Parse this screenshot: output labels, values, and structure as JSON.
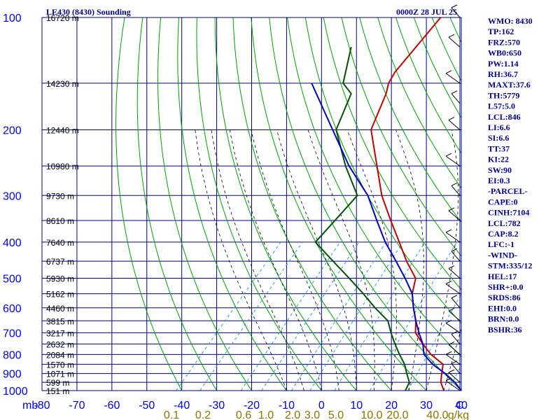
{
  "header": {
    "title": "LE430 (8430) Sounding",
    "time": "0000Z 28 JUL 25"
  },
  "colors": {
    "temperature": "#c00000",
    "dewpoint": "#005000",
    "parcel": "#0000c0",
    "grid": "#00008b",
    "dry_adiabat": "#00a000",
    "moist_adiabat": "#000000",
    "mixing_ratio": "#3399cc",
    "pressure_label": "#0000ff",
    "mixing_label": "#8b7500"
  },
  "indices": [
    "WMO: 8430",
    "TP:162",
    "FRZ:570",
    "WB0:650",
    "PW:1.14",
    "RH:36.7",
    "MAXT:37.6",
    "TH:5779",
    "L57:5.0",
    "LCL:846",
    "LI:6.6",
    "SI:6.6",
    "TT:37",
    "KI:22",
    "SW:90",
    "EI:0.3",
    "-PARCEL-",
    "CAPE:0",
    "CINH:7104",
    "LCL:782",
    "CAP:8.2",
    "LFC:-1",
    "-WIND-",
    "STM:335/12",
    "HEL:17",
    "SHR+:0.0",
    "SRDS:86",
    "EHI:0.0",
    "BRN:0.0",
    "BSHR:36"
  ],
  "chart_data": {
    "type": "line",
    "chart_kind": "skew-T log-P sounding",
    "xlim": [
      -80,
      40
    ],
    "ylim": [
      1000,
      100
    ],
    "y_scale": "log",
    "x_unit_label": "C",
    "y_unit_label": "mb",
    "x_ticks": [
      -80,
      -70,
      -60,
      -50,
      -40,
      -30,
      -20,
      -10,
      0,
      10,
      20,
      30,
      40
    ],
    "y_ticks": [
      1000,
      900,
      800,
      700,
      600,
      500,
      400,
      300,
      200,
      100
    ],
    "height_labels": [
      {
        "p": 100,
        "label": "16720 m"
      },
      {
        "p": 150,
        "label": "14230 m"
      },
      {
        "p": 200,
        "label": "12440 m"
      },
      {
        "p": 250,
        "label": "10980 m"
      },
      {
        "p": 300,
        "label": "9730 m"
      },
      {
        "p": 350,
        "label": "8610 m"
      },
      {
        "p": 400,
        "label": "7640 m"
      },
      {
        "p": 450,
        "label": "6737 m"
      },
      {
        "p": 500,
        "label": "5930 m"
      },
      {
        "p": 550,
        "label": "5162 m"
      },
      {
        "p": 600,
        "label": "4460 m"
      },
      {
        "p": 650,
        "label": "3815 m"
      },
      {
        "p": 700,
        "label": "3217 m"
      },
      {
        "p": 750,
        "label": "2632 m"
      },
      {
        "p": 800,
        "label": "2084 m"
      },
      {
        "p": 850,
        "label": "1570 m"
      },
      {
        "p": 900,
        "label": "1071 m"
      },
      {
        "p": 950,
        "label": "599 m"
      },
      {
        "p": 1000,
        "label": "151 m"
      }
    ],
    "mixing_ratio_labels": [
      "0.1",
      "0.2",
      "0.6",
      "1.0",
      "2.0",
      "3.0",
      "5.0",
      "10.0",
      "20.0",
      "40.0",
      "g/kg"
    ],
    "series": [
      {
        "key": "temperature",
        "points": [
          {
            "p": 100,
            "t": -62
          },
          {
            "p": 140,
            "t": -61
          },
          {
            "p": 150,
            "t": -60
          },
          {
            "p": 160,
            "t": -58
          },
          {
            "p": 200,
            "t": -53
          },
          {
            "p": 250,
            "t": -42
          },
          {
            "p": 300,
            "t": -33
          },
          {
            "p": 350,
            "t": -24
          },
          {
            "p": 400,
            "t": -16
          },
          {
            "p": 450,
            "t": -9
          },
          {
            "p": 500,
            "t": -2
          },
          {
            "p": 550,
            "t": 1
          },
          {
            "p": 600,
            "t": 5
          },
          {
            "p": 650,
            "t": 9
          },
          {
            "p": 700,
            "t": 12
          },
          {
            "p": 750,
            "t": 17
          },
          {
            "p": 800,
            "t": 22
          },
          {
            "p": 850,
            "t": 28
          },
          {
            "p": 900,
            "t": 30
          },
          {
            "p": 950,
            "t": 32
          },
          {
            "p": 1000,
            "t": 35
          }
        ]
      },
      {
        "key": "dewpoint",
        "points": [
          {
            "p": 120,
            "t": -80
          },
          {
            "p": 150,
            "t": -73
          },
          {
            "p": 160,
            "t": -68
          },
          {
            "p": 200,
            "t": -63
          },
          {
            "p": 250,
            "t": -51
          },
          {
            "p": 300,
            "t": -40
          },
          {
            "p": 400,
            "t": -40
          },
          {
            "p": 450,
            "t": -30
          },
          {
            "p": 500,
            "t": -21
          },
          {
            "p": 550,
            "t": -13
          },
          {
            "p": 600,
            "t": -6
          },
          {
            "p": 650,
            "t": 1
          },
          {
            "p": 700,
            "t": 5
          },
          {
            "p": 750,
            "t": 9
          },
          {
            "p": 800,
            "t": 13
          },
          {
            "p": 850,
            "t": 17
          },
          {
            "p": 900,
            "t": 20
          },
          {
            "p": 950,
            "t": 23
          },
          {
            "p": 1000,
            "t": 24
          }
        ]
      },
      {
        "key": "parcel",
        "points": [
          {
            "p": 150,
            "t": -82
          },
          {
            "p": 200,
            "t": -64
          },
          {
            "p": 250,
            "t": -50
          },
          {
            "p": 300,
            "t": -37
          },
          {
            "p": 350,
            "t": -28
          },
          {
            "p": 400,
            "t": -20
          },
          {
            "p": 450,
            "t": -12
          },
          {
            "p": 500,
            "t": -5
          },
          {
            "p": 550,
            "t": 1
          },
          {
            "p": 600,
            "t": 5
          },
          {
            "p": 650,
            "t": 9
          },
          {
            "p": 700,
            "t": 13
          },
          {
            "p": 750,
            "t": 17
          },
          {
            "p": 800,
            "t": 20
          },
          {
            "p": 850,
            "t": 25
          },
          {
            "p": 900,
            "t": 31
          },
          {
            "p": 950,
            "t": 36
          },
          {
            "p": 1000,
            "t": 40
          }
        ]
      }
    ],
    "wind_profile_pressures": [
      100,
      120,
      150,
      170,
      200,
      250,
      300,
      350,
      400,
      450,
      500,
      550,
      600,
      650,
      700,
      750,
      800,
      850,
      900,
      950,
      1000
    ]
  }
}
